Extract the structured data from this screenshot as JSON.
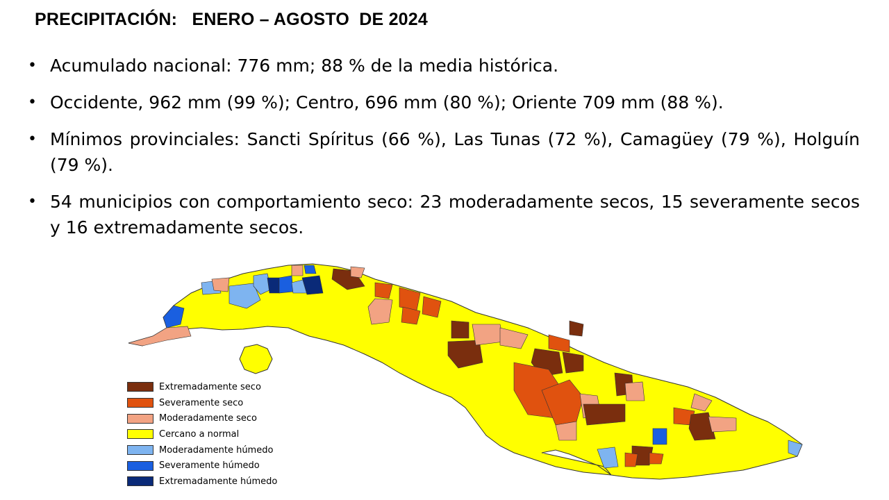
{
  "title": "PRECIPITACIÓN:   ENERO – AGOSTO  DE 2024",
  "bullets": [
    "Acumulado nacional: 776 mm; 88 % de la media histórica.",
    "Occidente, 962 mm (99 %); Centro, 696 mm (80 %); Oriente 709 mm (88 %).",
    "Mínimos provinciales:  Sancti Spíritus (66 %), Las Tunas (72 %), Camagüey (79 %), Holguín (79 %).",
    "54 municipios con comportamiento seco: 23 moderadamente secos, 15 severamente secos y 16 extremadamente secos."
  ],
  "bullet_marker": "•",
  "legend": [
    {
      "label": "Extremadamente seco",
      "color": "#7a2e0e"
    },
    {
      "label": "Severamente seco",
      "color": "#e0520f"
    },
    {
      "label": "Moderadamente seco",
      "color": "#f2a383"
    },
    {
      "label": "Cercano a normal",
      "color": "#ffff00"
    },
    {
      "label": "Moderadamente húmedo",
      "color": "#7eb4f0"
    },
    {
      "label": "Severamente húmedo",
      "color": "#1a5fe0"
    },
    {
      "label": "Extremadamente húmedo",
      "color": "#0a2a78"
    }
  ],
  "map": {
    "land_color": "#ffff00",
    "border_color": "#333333"
  }
}
